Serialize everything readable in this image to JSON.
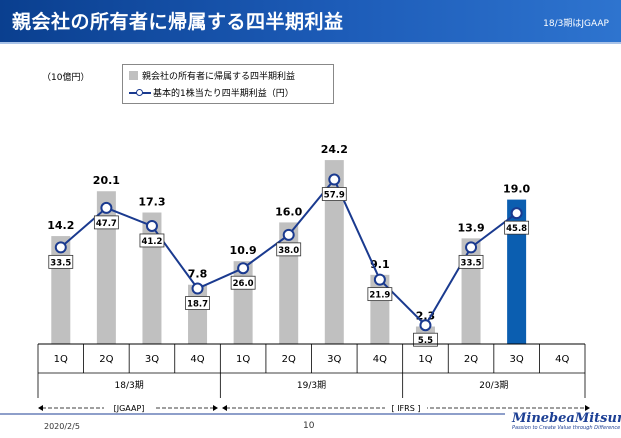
{
  "header": {
    "title": "親会社の所有者に帰属する四半期利益",
    "subtitle": "18/3期はJGAAP"
  },
  "chart_data": {
    "type": "bar",
    "unit_label": "（10億円）",
    "categories": [
      "1Q",
      "2Q",
      "3Q",
      "4Q",
      "1Q",
      "2Q",
      "3Q",
      "4Q",
      "1Q",
      "2Q",
      "3Q",
      "4Q"
    ],
    "periods": [
      "18/3期",
      "19/3期",
      "20/3期"
    ],
    "standards": [
      "[JGAAP]",
      "[ IFRS ]"
    ],
    "series": [
      {
        "name": "親会社の所有者に帰属する四半期利益",
        "kind": "bar",
        "values": [
          14.2,
          20.1,
          17.3,
          7.8,
          10.9,
          16.0,
          24.2,
          9.1,
          2.3,
          13.9,
          19.0,
          null
        ],
        "labels": [
          "14.2",
          "20.1",
          "17.3",
          "7.8",
          "10.9",
          "16.0",
          "24.2",
          "9.1",
          "2.3",
          "13.9",
          "19.0",
          ""
        ],
        "highlight_index": 10
      },
      {
        "name": "基本的1株当たり四半期利益（円）",
        "kind": "line",
        "values": [
          33.5,
          47.7,
          41.2,
          18.7,
          26.0,
          38.0,
          57.9,
          21.9,
          5.5,
          33.5,
          45.8,
          null
        ],
        "labels": [
          "33.5",
          "47.7",
          "41.2",
          "18.7",
          "26.0",
          "38.0",
          "57.9",
          "21.9",
          "5.5",
          "33.5",
          "45.8",
          ""
        ]
      }
    ],
    "colors": {
      "bar": "#c0c0c0",
      "highlight": "#0b5eb0",
      "line": "#1a3a8f"
    }
  },
  "footer": {
    "date": "2020/2/5",
    "page": "10",
    "brand": "MinebeaMitsumi",
    "slogan": "Passion to Create Value through Difference"
  }
}
